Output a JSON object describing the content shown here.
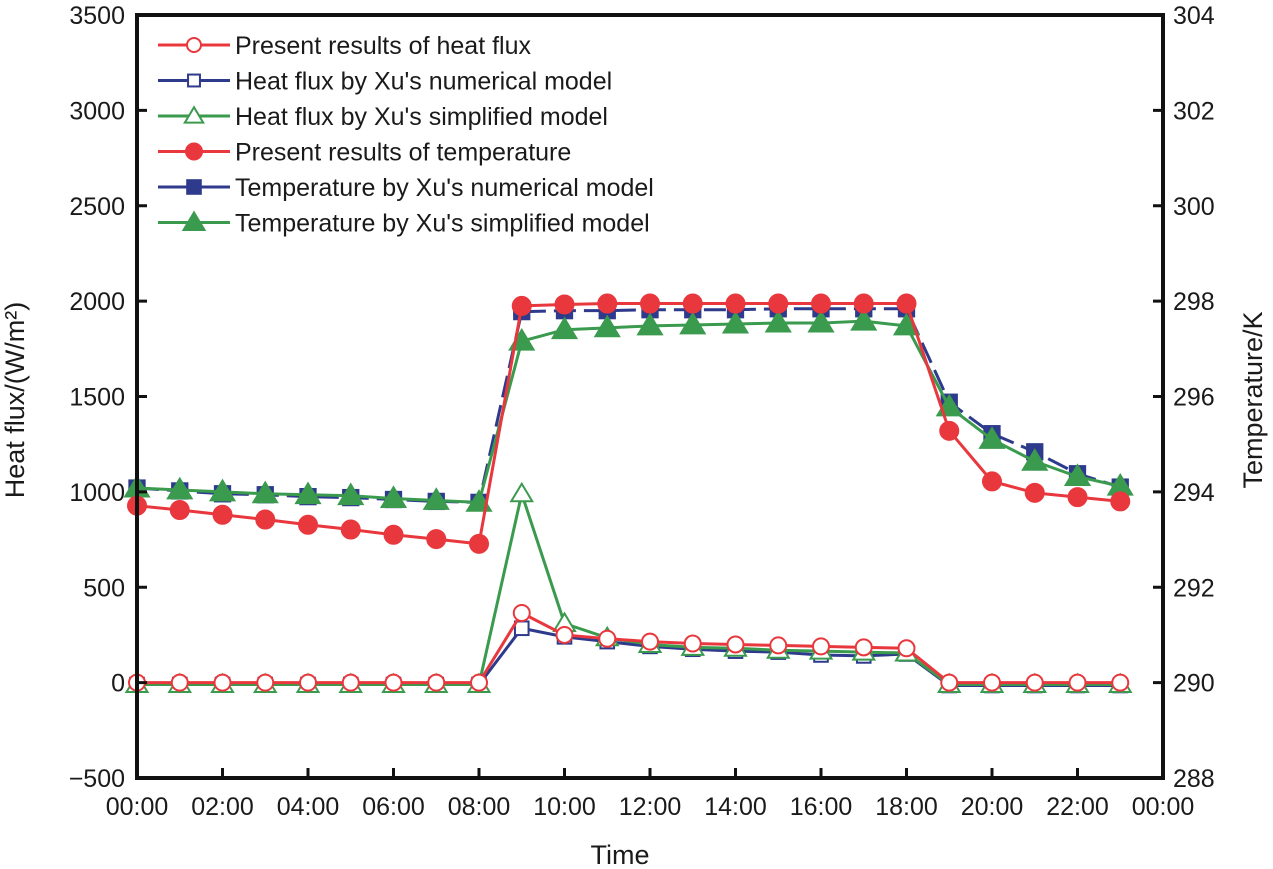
{
  "chart_data": {
    "type": "line",
    "title": "",
    "xlabel": "Time",
    "ylabel_left": "Heat flux/(W/m²)",
    "ylabel_right": "Temperature/K",
    "x_ticks": [
      "00:00",
      "02:00",
      "04:00",
      "06:00",
      "08:00",
      "10:00",
      "12:00",
      "14:00",
      "16:00",
      "18:00",
      "20:00",
      "22:00",
      "00:00"
    ],
    "x_range_hours": [
      0,
      24
    ],
    "y_left_range": [
      -500,
      3500
    ],
    "y_left_ticks": [
      "-500",
      "0",
      "500",
      "1000",
      "1500",
      "2000",
      "2500",
      "3000",
      "3500"
    ],
    "y_left_tick_values": [
      -500,
      0,
      500,
      1000,
      1500,
      2000,
      2500,
      3000,
      3500
    ],
    "y_right_range": [
      288,
      304
    ],
    "y_right_ticks": [
      "288",
      "290",
      "292",
      "294",
      "296",
      "298",
      "300",
      "302",
      "304"
    ],
    "y_right_tick_values": [
      288,
      290,
      292,
      294,
      296,
      298,
      300,
      302,
      304
    ],
    "grid": false,
    "legend_position": "top-left",
    "x_hours": [
      0,
      1,
      2,
      3,
      4,
      5,
      6,
      7,
      8,
      9,
      10,
      11,
      12,
      13,
      14,
      15,
      16,
      17,
      18,
      19,
      20,
      21,
      22,
      23
    ],
    "series": [
      {
        "name": "Present results of heat flux",
        "axis": "left",
        "color": "#e8383d",
        "marker": "circle",
        "filled": false,
        "dashed": false,
        "values": [
          0,
          0,
          0,
          0,
          0,
          0,
          0,
          0,
          0,
          365,
          250,
          230,
          215,
          205,
          200,
          195,
          190,
          185,
          180,
          0,
          0,
          0,
          0,
          0
        ]
      },
      {
        "name": "Heat flux by Xu's numerical model",
        "axis": "left",
        "color": "#2e3a8c",
        "marker": "square",
        "filled": false,
        "dashed": false,
        "values": [
          -10,
          -10,
          -10,
          -10,
          -10,
          -10,
          -10,
          -10,
          -10,
          285,
          240,
          215,
          190,
          175,
          165,
          160,
          145,
          140,
          150,
          -15,
          -15,
          -15,
          -15,
          -15
        ]
      },
      {
        "name": "Heat flux by Xu's simplified model",
        "axis": "left",
        "color": "#3a9a4e",
        "marker": "triangle",
        "filled": false,
        "dashed": false,
        "values": [
          -10,
          -10,
          -10,
          -10,
          -10,
          -10,
          -10,
          -10,
          -10,
          990,
          310,
          235,
          200,
          185,
          180,
          170,
          165,
          160,
          155,
          -10,
          -10,
          -10,
          -10,
          -10
        ]
      },
      {
        "name": "Present results of temperature",
        "axis": "right",
        "color": "#e8383d",
        "marker": "circle",
        "filled": true,
        "dashed": false,
        "values": [
          293.71,
          293.62,
          293.52,
          293.42,
          293.31,
          293.21,
          293.1,
          293.01,
          292.91,
          297.9,
          297.93,
          297.95,
          297.95,
          297.95,
          297.95,
          297.95,
          297.95,
          297.95,
          297.95,
          295.28,
          294.22,
          293.98,
          293.89,
          293.8
        ]
      },
      {
        "name": "Temperature by Xu's numerical model",
        "axis": "right",
        "color": "#2e3a8c",
        "marker": "square",
        "filled": true,
        "dashed": true,
        "values": [
          294.08,
          294.02,
          293.96,
          293.94,
          293.9,
          293.88,
          293.84,
          293.8,
          293.78,
          297.78,
          297.8,
          297.8,
          297.82,
          297.82,
          297.82,
          297.84,
          297.84,
          297.84,
          297.84,
          295.88,
          295.22,
          294.84,
          294.38,
          294.1
        ]
      },
      {
        "name": "Temperature by Xu's simplified model",
        "axis": "right",
        "color": "#3a9a4e",
        "marker": "triangle",
        "filled": true,
        "dashed": false,
        "values": [
          294.08,
          294.04,
          294.0,
          293.96,
          293.94,
          293.92,
          293.86,
          293.82,
          293.78,
          297.16,
          297.4,
          297.44,
          297.48,
          297.5,
          297.52,
          297.54,
          297.54,
          297.58,
          297.48,
          295.78,
          295.1,
          294.64,
          294.32,
          294.12
        ]
      }
    ]
  }
}
